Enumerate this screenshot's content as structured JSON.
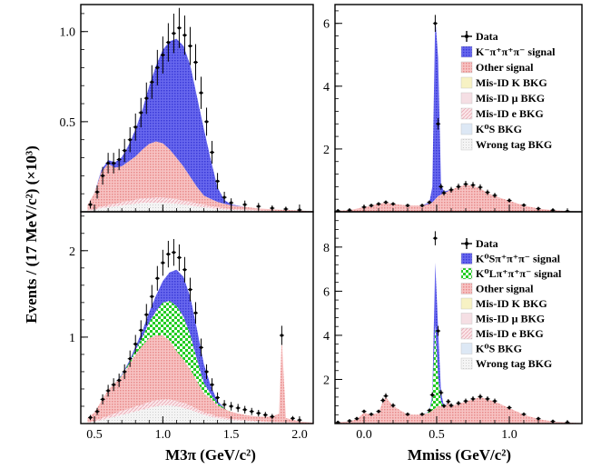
{
  "figure": {
    "ylabel": "Events / (17 MeV/c²) (×10³)",
    "left_xlabel": "M3π (GeV/c²)",
    "right_xlabel": "Mmiss (GeV/c²)"
  },
  "colors": {
    "data": "#000000",
    "main_signal": "#5050e8",
    "neutral_signal": "#22cc22",
    "other_signal": "#f2a0a0",
    "misid_k": "#f7f2c4",
    "misid_mu": "#f5dfe4",
    "misid_e": "#f0ccd2",
    "ks_bkg": "#dde8f5",
    "wrong_tag": "#eaeaea"
  },
  "chart_data": [
    {
      "id": "top-left",
      "type": "stacked-histogram",
      "xlabel": "",
      "ylabel": "",
      "xlim": [
        0.4,
        2.1
      ],
      "ylim": [
        0,
        1.15
      ],
      "xticks": [
        0.5,
        1.0,
        1.5,
        2.0
      ],
      "yticks": [
        0.5,
        1.0
      ],
      "yticklabels": [
        "0.5",
        "1.0"
      ],
      "show_xticklabels": false,
      "legend": [],
      "components": {
        "x": [
          0.45,
          0.5,
          0.55,
          0.6,
          0.65,
          0.7,
          0.75,
          0.8,
          0.85,
          0.9,
          0.95,
          1.0,
          1.05,
          1.1,
          1.15,
          1.2,
          1.25,
          1.3,
          1.35,
          1.4,
          1.45,
          1.5,
          1.6,
          1.7,
          1.8,
          1.9,
          2.0,
          2.1
        ],
        "layers": [
          {
            "key": "wrong_tag",
            "values": [
              0.005,
              0.01,
              0.02,
              0.025,
              0.03,
              0.035,
              0.04,
              0.045,
              0.05,
              0.05,
              0.05,
              0.05,
              0.048,
              0.045,
              0.04,
              0.035,
              0.03,
              0.025,
              0.02,
              0.015,
              0.012,
              0.01,
              0.008,
              0.005,
              0.004,
              0.003,
              0.002,
              0.001
            ]
          },
          {
            "key": "misid_e",
            "values": [
              0.003,
              0.005,
              0.01,
              0.012,
              0.015,
              0.018,
              0.02,
              0.022,
              0.025,
              0.027,
              0.03,
              0.03,
              0.028,
              0.025,
              0.022,
              0.02,
              0.018,
              0.015,
              0.012,
              0.01,
              0.008,
              0.006,
              0.004,
              0.003,
              0.002,
              0.001,
              0.001,
              0.0
            ]
          },
          {
            "key": "other_signal",
            "values": [
              0.03,
              0.09,
              0.19,
              0.23,
              0.2,
              0.2,
              0.22,
              0.24,
              0.27,
              0.3,
              0.31,
              0.3,
              0.27,
              0.23,
              0.19,
              0.14,
              0.09,
              0.05,
              0.04,
              0.03,
              0.025,
              0.02,
              0.015,
              0.01,
              0.008,
              0.006,
              0.004,
              0.002
            ]
          },
          {
            "key": "main_signal",
            "values": [
              0.0,
              0.0,
              0.01,
              0.02,
              0.03,
              0.05,
              0.09,
              0.15,
              0.22,
              0.32,
              0.42,
              0.52,
              0.6,
              0.66,
              0.67,
              0.62,
              0.5,
              0.37,
              0.22,
              0.08,
              0.02,
              0.005,
              0.0,
              0.0,
              0.0,
              0.0,
              0.0,
              0.0
            ]
          }
        ]
      },
      "data_points": {
        "x": [
          0.47,
          0.52,
          0.56,
          0.6,
          0.64,
          0.68,
          0.72,
          0.76,
          0.8,
          0.84,
          0.88,
          0.92,
          0.96,
          1.0,
          1.04,
          1.08,
          1.12,
          1.16,
          1.2,
          1.24,
          1.28,
          1.32,
          1.36,
          1.4,
          1.45,
          1.5,
          1.6,
          1.7,
          1.8,
          1.9,
          2.0
        ],
        "y": [
          0.04,
          0.11,
          0.2,
          0.27,
          0.27,
          0.29,
          0.34,
          0.4,
          0.47,
          0.55,
          0.63,
          0.72,
          0.8,
          0.87,
          0.94,
          0.99,
          1.02,
          0.98,
          0.92,
          0.83,
          0.66,
          0.5,
          0.33,
          0.17,
          0.08,
          0.05,
          0.04,
          0.03,
          0.02,
          0.015,
          0.01
        ]
      }
    },
    {
      "id": "top-right",
      "type": "stacked-histogram",
      "xlabel": "",
      "ylabel": "",
      "xlim": [
        -0.2,
        1.5
      ],
      "ylim": [
        0,
        6.6
      ],
      "xticks": [
        0.0,
        0.5,
        1.0
      ],
      "yticks": [
        2,
        4,
        6
      ],
      "yticklabels": [
        "2",
        "4",
        "6"
      ],
      "show_xticklabels": false,
      "legend": [
        {
          "label": "Data",
          "key": "data",
          "marker": "cross"
        },
        {
          "label": "K⁻π⁺π⁺π⁻ signal",
          "key": "main_signal"
        },
        {
          "label": "Other signal",
          "key": "other_signal"
        },
        {
          "label": "Mis-ID  K BKG",
          "key": "misid_k"
        },
        {
          "label": "Mis-ID  μ BKG",
          "key": "misid_mu"
        },
        {
          "label": "Mis-ID e BKG",
          "key": "misid_e"
        },
        {
          "label": "K⁰S BKG",
          "key": "ks_bkg"
        },
        {
          "label": "Wrong tag BKG",
          "key": "wrong_tag"
        }
      ],
      "components": {
        "x": [
          -0.2,
          -0.1,
          0.0,
          0.05,
          0.1,
          0.15,
          0.2,
          0.3,
          0.4,
          0.45,
          0.47,
          0.49,
          0.51,
          0.53,
          0.55,
          0.6,
          0.65,
          0.7,
          0.75,
          0.8,
          0.85,
          0.9,
          1.0,
          1.1,
          1.2,
          1.3,
          1.4,
          1.5
        ],
        "layers": [
          {
            "key": "other_signal",
            "values": [
              0.03,
              0.05,
              0.15,
              0.2,
              0.25,
              0.3,
              0.25,
              0.2,
              0.2,
              0.25,
              0.3,
              0.4,
              0.5,
              0.55,
              0.6,
              0.7,
              0.8,
              0.85,
              0.82,
              0.75,
              0.6,
              0.5,
              0.35,
              0.2,
              0.1,
              0.05,
              0.02,
              0.01
            ]
          },
          {
            "key": "main_signal",
            "values": [
              0.0,
              0.0,
              0.0,
              0.0,
              0.0,
              0.0,
              0.0,
              0.0,
              0.0,
              0.05,
              0.5,
              5.8,
              4.4,
              0.3,
              0.05,
              0.0,
              0.0,
              0.0,
              0.0,
              0.0,
              0.0,
              0.0,
              0.0,
              0.0,
              0.0,
              0.0,
              0.0,
              0.0
            ]
          }
        ]
      },
      "data_points": {
        "x": [
          -0.18,
          -0.1,
          0.0,
          0.05,
          0.1,
          0.15,
          0.2,
          0.3,
          0.4,
          0.45,
          0.49,
          0.51,
          0.53,
          0.55,
          0.6,
          0.65,
          0.7,
          0.75,
          0.8,
          0.85,
          0.9,
          1.0,
          1.1,
          1.2,
          1.3,
          1.4
        ],
        "y": [
          0.03,
          0.05,
          0.15,
          0.2,
          0.25,
          0.3,
          0.25,
          0.2,
          0.2,
          0.3,
          6.0,
          2.8,
          0.8,
          0.6,
          0.7,
          0.8,
          0.88,
          0.85,
          0.78,
          0.62,
          0.52,
          0.36,
          0.21,
          0.1,
          0.05,
          0.02
        ]
      }
    },
    {
      "id": "bottom-left",
      "type": "stacked-histogram",
      "xlabel": "M3π (GeV/c²)",
      "ylabel": "",
      "xlim": [
        0.4,
        2.1
      ],
      "ylim": [
        0,
        2.45
      ],
      "xticks": [
        0.5,
        1.0,
        1.5,
        2.0
      ],
      "xticklabels": [
        "0.5",
        "1.0",
        "1.5",
        "2.0"
      ],
      "yticks": [
        1,
        2
      ],
      "yticklabels": [
        "1",
        "2"
      ],
      "show_xticklabels": true,
      "legend": [],
      "components": {
        "x": [
          0.45,
          0.5,
          0.55,
          0.6,
          0.65,
          0.7,
          0.75,
          0.8,
          0.85,
          0.9,
          0.95,
          1.0,
          1.05,
          1.1,
          1.15,
          1.2,
          1.25,
          1.3,
          1.35,
          1.4,
          1.45,
          1.5,
          1.6,
          1.7,
          1.8,
          1.85,
          1.87,
          1.9,
          2.0,
          2.1
        ],
        "layers": [
          {
            "key": "wrong_tag",
            "values": [
              0.01,
              0.02,
              0.04,
              0.06,
              0.08,
              0.1,
              0.12,
              0.14,
              0.16,
              0.18,
              0.2,
              0.21,
              0.21,
              0.2,
              0.18,
              0.16,
              0.13,
              0.1,
              0.08,
              0.06,
              0.05,
              0.04,
              0.03,
              0.02,
              0.015,
              0.01,
              0.01,
              0.01,
              0.005,
              0.0
            ]
          },
          {
            "key": "misid_e",
            "values": [
              0.005,
              0.01,
              0.02,
              0.03,
              0.04,
              0.05,
              0.05,
              0.06,
              0.06,
              0.07,
              0.07,
              0.07,
              0.07,
              0.06,
              0.06,
              0.05,
              0.04,
              0.03,
              0.03,
              0.02,
              0.02,
              0.015,
              0.01,
              0.01,
              0.005,
              0.005,
              0.005,
              0.005,
              0.0,
              0.0
            ]
          },
          {
            "key": "other_signal",
            "values": [
              0.05,
              0.1,
              0.2,
              0.3,
              0.35,
              0.4,
              0.5,
              0.6,
              0.68,
              0.74,
              0.75,
              0.74,
              0.68,
              0.58,
              0.5,
              0.42,
              0.32,
              0.22,
              0.18,
              0.13,
              0.1,
              0.08,
              0.06,
              0.05,
              0.06,
              0.1,
              0.98,
              0.05,
              0.02,
              0.01
            ]
          },
          {
            "key": "neutral_signal",
            "values": [
              0.0,
              0.0,
              0.0,
              0.0,
              0.0,
              0.01,
              0.02,
              0.05,
              0.1,
              0.18,
              0.28,
              0.38,
              0.46,
              0.52,
              0.5,
              0.4,
              0.25,
              0.12,
              0.05,
              0.02,
              0.01,
              0.0,
              0.0,
              0.0,
              0.0,
              0.0,
              0.0,
              0.0,
              0.0,
              0.0
            ]
          },
          {
            "key": "main_signal",
            "values": [
              0.0,
              0.0,
              0.0,
              0.0,
              0.0,
              0.01,
              0.02,
              0.04,
              0.07,
              0.12,
              0.18,
              0.25,
              0.33,
              0.42,
              0.46,
              0.44,
              0.35,
              0.22,
              0.1,
              0.03,
              0.0,
              0.0,
              0.0,
              0.0,
              0.0,
              0.0,
              0.0,
              0.0,
              0.0,
              0.0
            ]
          }
        ]
      },
      "data_points": {
        "x": [
          0.47,
          0.52,
          0.56,
          0.6,
          0.64,
          0.68,
          0.72,
          0.76,
          0.8,
          0.84,
          0.88,
          0.92,
          0.96,
          1.0,
          1.04,
          1.08,
          1.12,
          1.16,
          1.2,
          1.24,
          1.28,
          1.32,
          1.36,
          1.4,
          1.45,
          1.5,
          1.55,
          1.6,
          1.65,
          1.7,
          1.75,
          1.8,
          1.87,
          1.95,
          2.0
        ],
        "y": [
          0.07,
          0.14,
          0.28,
          0.38,
          0.45,
          0.5,
          0.6,
          0.75,
          0.92,
          1.08,
          1.26,
          1.47,
          1.68,
          1.86,
          1.96,
          1.98,
          1.92,
          1.78,
          1.55,
          1.28,
          0.88,
          0.6,
          0.45,
          0.3,
          0.22,
          0.2,
          0.18,
          0.16,
          0.14,
          0.12,
          0.1,
          0.08,
          1.02,
          0.06,
          0.04
        ]
      }
    },
    {
      "id": "bottom-right",
      "type": "stacked-histogram",
      "xlabel": "Mmiss (GeV/c²)",
      "ylabel": "",
      "xlim": [
        -0.2,
        1.5
      ],
      "ylim": [
        0,
        9.6
      ],
      "xticks": [
        0.0,
        0.5,
        1.0
      ],
      "xticklabels": [
        "0.0",
        "0.5",
        "1.0"
      ],
      "yticks": [
        2,
        4,
        6,
        8
      ],
      "yticklabels": [
        "2",
        "4",
        "6",
        "8"
      ],
      "show_xticklabels": true,
      "legend": [
        {
          "label": "Data",
          "key": "data",
          "marker": "cross"
        },
        {
          "label": "K⁰Sπ⁺π⁺π⁻ signal",
          "key": "main_signal"
        },
        {
          "label": "K⁰Lπ⁺π⁺π⁻ signal",
          "key": "neutral_signal"
        },
        {
          "label": "Other signal",
          "key": "other_signal"
        },
        {
          "label": "Mis-ID  K BKG",
          "key": "misid_k"
        },
        {
          "label": "Mis-ID  μ BKG",
          "key": "misid_mu"
        },
        {
          "label": "Mis-ID e BKG",
          "key": "misid_e"
        },
        {
          "label": "K⁰S BKG",
          "key": "ks_bkg"
        },
        {
          "label": "Wrong tag BKG",
          "key": "wrong_tag"
        }
      ],
      "components": {
        "x": [
          -0.2,
          -0.1,
          -0.05,
          0.0,
          0.05,
          0.1,
          0.13,
          0.15,
          0.2,
          0.3,
          0.4,
          0.45,
          0.47,
          0.49,
          0.51,
          0.53,
          0.55,
          0.58,
          0.6,
          0.65,
          0.7,
          0.75,
          0.8,
          0.85,
          0.9,
          1.0,
          1.1,
          1.2,
          1.3,
          1.4,
          1.5
        ],
        "layers": [
          {
            "key": "other_signal",
            "values": [
              0.05,
              0.1,
              0.2,
              0.5,
              0.4,
              0.5,
              1.0,
              1.2,
              0.8,
              0.4,
              0.4,
              0.5,
              0.6,
              0.7,
              0.8,
              0.8,
              0.7,
              1.0,
              0.8,
              0.9,
              1.0,
              1.1,
              1.2,
              1.1,
              1.0,
              0.7,
              0.4,
              0.2,
              0.1,
              0.05,
              0.02
            ]
          },
          {
            "key": "neutral_signal",
            "values": [
              0.0,
              0.0,
              0.0,
              0.0,
              0.0,
              0.0,
              0.0,
              0.0,
              0.0,
              0.0,
              0.0,
              0.05,
              0.5,
              3.8,
              1.3,
              0.2,
              0.05,
              0.0,
              0.0,
              0.0,
              0.0,
              0.0,
              0.0,
              0.0,
              0.0,
              0.0,
              0.0,
              0.0,
              0.0,
              0.0,
              0.0
            ]
          },
          {
            "key": "main_signal",
            "values": [
              0.0,
              0.0,
              0.0,
              0.0,
              0.0,
              0.0,
              0.0,
              0.0,
              0.0,
              0.0,
              0.0,
              0.02,
              0.2,
              2.8,
              2.2,
              0.4,
              0.05,
              0.0,
              0.0,
              0.0,
              0.0,
              0.0,
              0.0,
              0.0,
              0.0,
              0.0,
              0.0,
              0.0,
              0.0,
              0.0,
              0.0
            ]
          }
        ]
      },
      "data_points": {
        "x": [
          -0.18,
          -0.1,
          -0.05,
          0.0,
          0.05,
          0.1,
          0.13,
          0.15,
          0.2,
          0.3,
          0.4,
          0.45,
          0.47,
          0.49,
          0.51,
          0.53,
          0.55,
          0.58,
          0.6,
          0.65,
          0.7,
          0.75,
          0.8,
          0.85,
          0.9,
          1.0,
          1.1,
          1.2,
          1.3,
          1.4
        ],
        "y": [
          0.05,
          0.12,
          0.22,
          0.55,
          0.42,
          0.55,
          1.05,
          1.25,
          0.82,
          0.42,
          0.42,
          0.6,
          1.3,
          8.4,
          4.2,
          1.4,
          0.8,
          1.0,
          0.82,
          0.92,
          1.02,
          1.12,
          1.22,
          1.12,
          1.02,
          0.72,
          0.42,
          0.22,
          0.1,
          0.05
        ]
      }
    }
  ]
}
